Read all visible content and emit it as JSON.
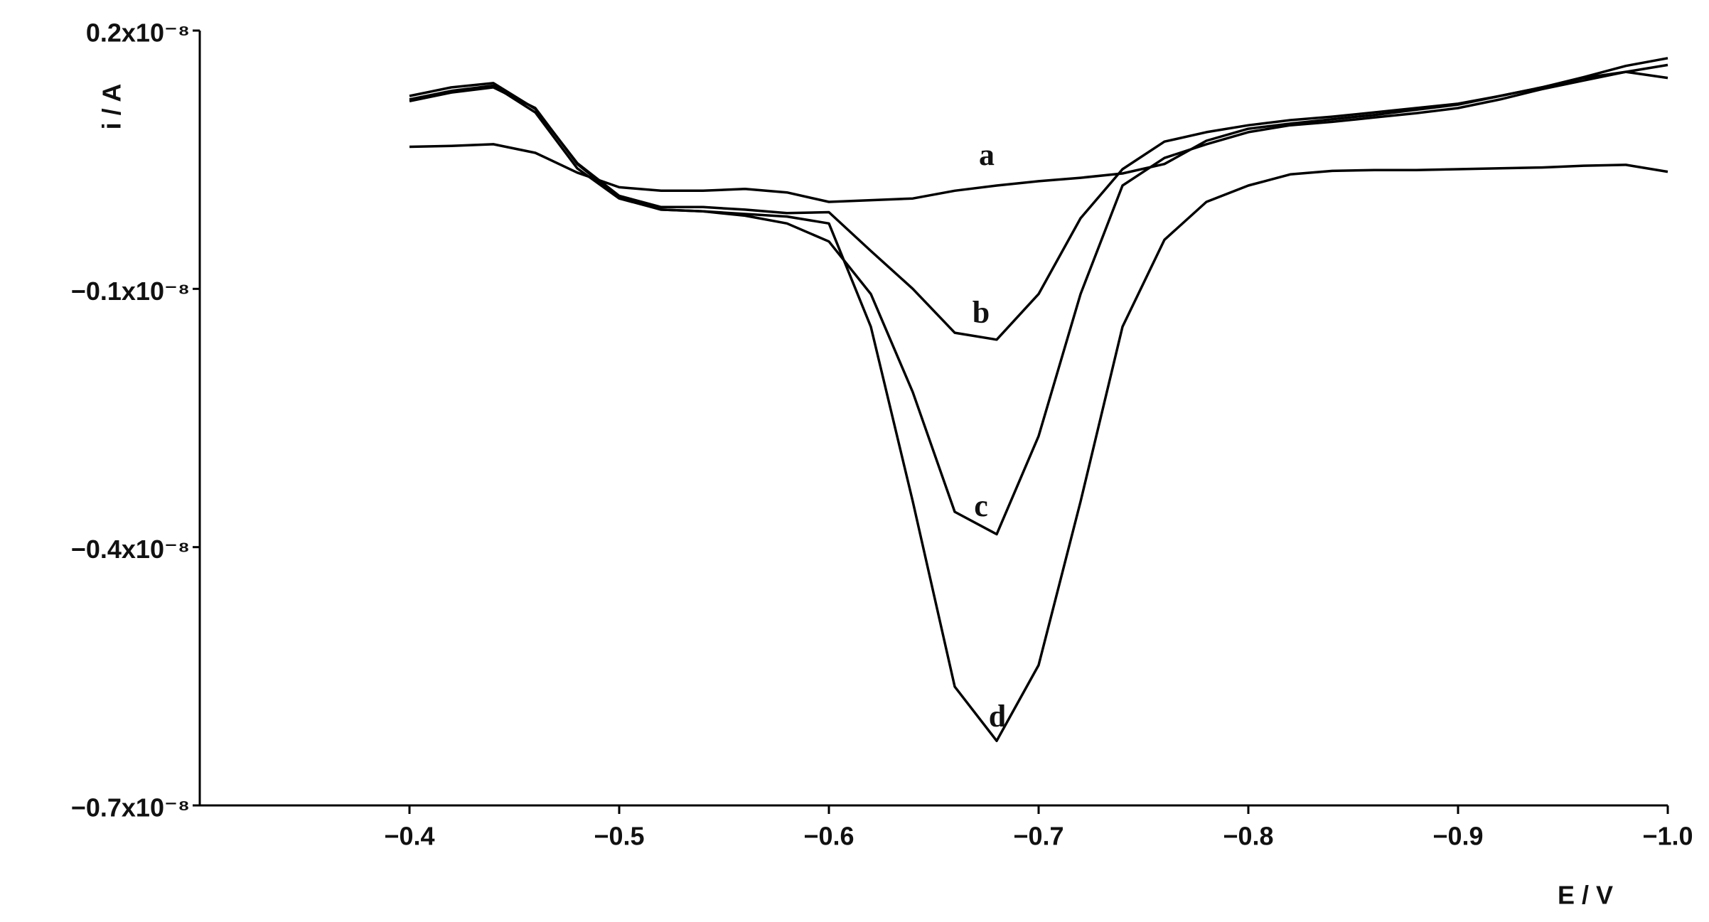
{
  "chart_data": {
    "type": "line",
    "x_label": "E / V",
    "y_label": "i / A",
    "x": [
      -0.4,
      -0.42,
      -0.44,
      -0.46,
      -0.48,
      -0.5,
      -0.52,
      -0.54,
      -0.56,
      -0.58,
      -0.6,
      -0.62,
      -0.64,
      -0.66,
      -0.68,
      -0.7,
      -0.72,
      -0.74,
      -0.76,
      -0.78,
      -0.8,
      -0.82,
      -0.84,
      -0.86,
      -0.88,
      -0.9,
      -0.92,
      -0.94,
      -0.96,
      -0.98,
      -1.0
    ],
    "series": [
      {
        "name": "a",
        "color": "#000000",
        "values": [
          6.5e-10,
          6.6e-10,
          6.8e-10,
          5.8e-10,
          3.5e-10,
          1.8e-10,
          1.4e-10,
          1.4e-10,
          1.6e-10,
          1.2e-10,
          1e-11,
          3e-11,
          5e-11,
          1.4e-10,
          2e-10,
          2.5e-10,
          2.9e-10,
          3.4e-10,
          4.5e-10,
          7.2e-10,
          8.6e-10,
          9.2e-10,
          9.7e-10,
          1.02e-09,
          1.08e-09,
          1.14e-09,
          1.24e-09,
          1.34e-09,
          1.45e-09,
          1.52e-09,
          1.45e-09
        ]
      },
      {
        "name": "b",
        "color": "#000000",
        "values": [
          1.24e-09,
          1.34e-09,
          1.39e-09,
          1.09e-09,
          4.6e-10,
          8e-11,
          -5e-11,
          -5e-11,
          -8e-11,
          -1.2e-10,
          -1.1e-10,
          -5.6e-10,
          -1e-09,
          -1.51e-09,
          -1.59e-09,
          -1.06e-09,
          -1.8e-10,
          3.9e-10,
          7.1e-10,
          8.2e-10,
          9e-10,
          9.6e-10,
          1e-09,
          1.05e-09,
          1.1e-09,
          1.15e-09,
          1.24e-09,
          1.34e-09,
          1.46e-09,
          1.59e-09,
          1.68e-09
        ]
      },
      {
        "name": "c",
        "color": "#000000",
        "values": [
          1.2e-09,
          1.3e-09,
          1.36e-09,
          1.05e-09,
          4e-10,
          5e-11,
          -8e-11,
          -1e-10,
          -1.5e-10,
          -2.4e-10,
          -4.5e-10,
          -1.06e-09,
          -2.2e-09,
          -3.59e-09,
          -3.85e-09,
          -2.71e-09,
          -1.06e-09,
          2e-10,
          5.2e-10,
          6.8e-10,
          8.2e-10,
          9e-10,
          9.4e-10,
          9.9e-10,
          1.04e-09,
          1.1e-09,
          1.2e-09,
          1.32e-09,
          1.42e-09,
          1.52e-09,
          1.6e-09
        ]
      },
      {
        "name": "d",
        "color": "#000000",
        "values": [
          1.18e-09,
          1.28e-09,
          1.34e-09,
          1.1e-09,
          4.5e-10,
          6e-11,
          -8e-11,
          -1e-10,
          -1.3e-10,
          -1.6e-10,
          -2.4e-10,
          -1.44e-09,
          -3.47e-09,
          -5.62e-09,
          -6.25e-09,
          -5.37e-09,
          -3.47e-09,
          -1.44e-09,
          -4.3e-10,
          1e-11,
          2e-10,
          3.3e-10,
          3.7e-10,
          3.8e-10,
          3.8e-10,
          3.9e-10,
          4e-10,
          4.1e-10,
          4.3e-10,
          4.4e-10,
          3.6e-10
        ]
      }
    ],
    "xlim": [
      -0.3,
      -1.0
    ],
    "xticks": [
      {
        "value": -0.4,
        "label": "−0.4"
      },
      {
        "value": -0.5,
        "label": "−0.5"
      },
      {
        "value": -0.6,
        "label": "−0.6"
      },
      {
        "value": -0.7,
        "label": "−0.7"
      },
      {
        "value": -0.8,
        "label": "−0.8"
      },
      {
        "value": -0.9,
        "label": "−0.9"
      },
      {
        "value": -1.0,
        "label": "−1.0"
      }
    ],
    "ylim": [
      -7e-09,
      2e-09
    ],
    "yticks": [
      {
        "value": 2e-09,
        "label": "0.2x10⁻⁸"
      },
      {
        "value": -1e-09,
        "label": "−0.1x10⁻⁸"
      },
      {
        "value": -4e-09,
        "label": "−0.4x10⁻⁸"
      },
      {
        "value": -7e-09,
        "label": "−0.7x10⁻⁸"
      }
    ],
    "grid": false
  }
}
